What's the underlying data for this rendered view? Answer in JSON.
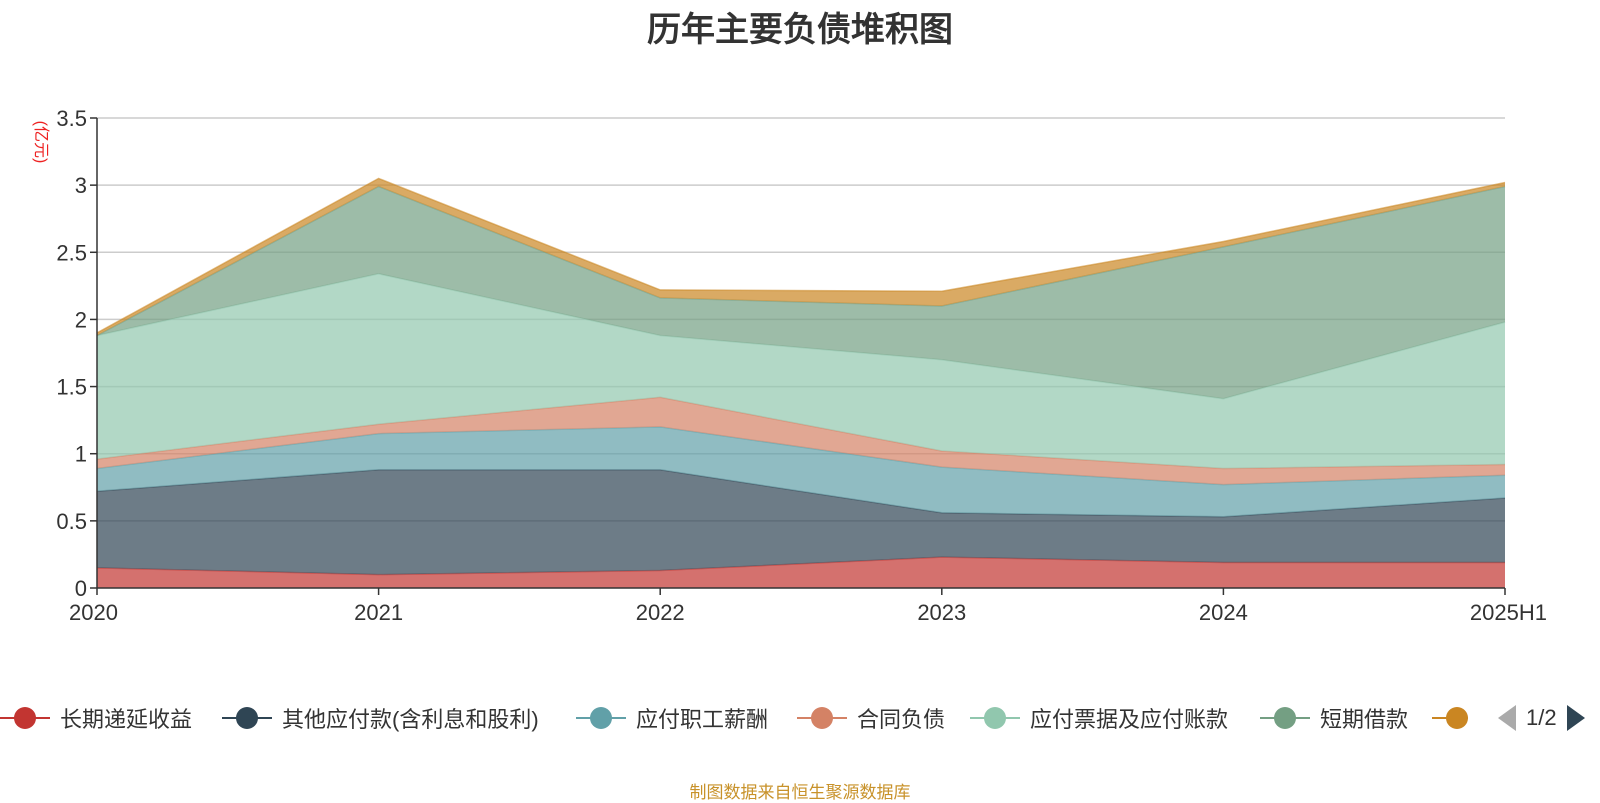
{
  "title": "历年主要负债堆积图",
  "source": "制图数据来自恒生聚源数据库",
  "pager": {
    "text": "1/2"
  },
  "legend_items": [
    {
      "label": "长期递延收益",
      "color": "#c23531"
    },
    {
      "label": "其他应付款(含利息和股利)",
      "color": "#2f4554"
    },
    {
      "label": "应付职工薪酬",
      "color": "#61a0a8"
    },
    {
      "label": "合同负债",
      "color": "#d48265"
    },
    {
      "label": "应付票据及应付账款",
      "color": "#91c7ae"
    },
    {
      "label": "短期借款",
      "color": "#749f83"
    },
    {
      "label": "",
      "color": "#ca8622"
    }
  ],
  "chart_data": {
    "type": "area",
    "stacked": true,
    "title": "历年主要负债堆积图",
    "ylabel": "(亿元)",
    "xlabel": "",
    "ylim": [
      0,
      3.5
    ],
    "yticks": [
      "0",
      "0.5",
      "1",
      "1.5",
      "2",
      "2.5",
      "3",
      "3.5"
    ],
    "grid": true,
    "legend_position": "bottom",
    "categories": [
      "2020",
      "2021",
      "2022",
      "2023",
      "2024",
      "2025H1"
    ],
    "series": [
      {
        "name": "长期递延收益",
        "color": "#c23531",
        "values": [
          0.15,
          0.1,
          0.13,
          0.23,
          0.19,
          0.19
        ]
      },
      {
        "name": "其他应付款(含利息和股利)",
        "color": "#2f4554",
        "values": [
          0.57,
          0.78,
          0.75,
          0.33,
          0.34,
          0.48
        ]
      },
      {
        "name": "应付职工薪酬",
        "color": "#61a0a8",
        "values": [
          0.17,
          0.27,
          0.32,
          0.34,
          0.24,
          0.17
        ]
      },
      {
        "name": "合同负债",
        "color": "#d48265",
        "values": [
          0.07,
          0.07,
          0.22,
          0.12,
          0.12,
          0.08
        ]
      },
      {
        "name": "应付票据及应付账款",
        "color": "#91c7ae",
        "values": [
          0.92,
          1.12,
          0.46,
          0.68,
          0.52,
          1.06
        ]
      },
      {
        "name": "短期借款",
        "color": "#749f83",
        "values": [
          0.0,
          0.65,
          0.28,
          0.4,
          1.13,
          1.01
        ]
      },
      {
        "name": "",
        "color": "#ca8622",
        "values": [
          0.02,
          0.06,
          0.06,
          0.11,
          0.04,
          0.03
        ]
      }
    ]
  }
}
